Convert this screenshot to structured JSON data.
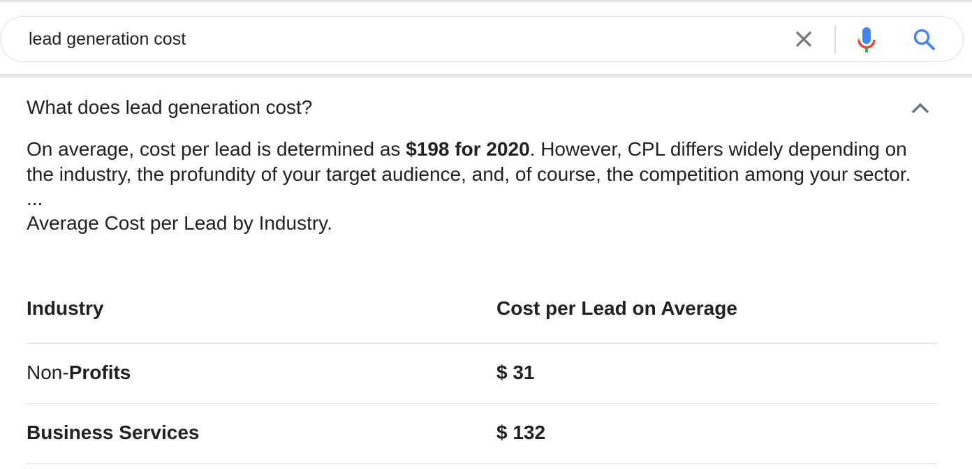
{
  "search": {
    "query": "lead generation cost"
  },
  "faq": {
    "question": "What does lead generation cost?",
    "answer_pre": "On average, cost per lead is determined as ",
    "answer_bold": "$198 for 2020",
    "answer_post": ". However, CPL differs widely depending on the industry, the profundity of your target audience, and, of course, the competition among your sector.",
    "ellipsis": "...",
    "table_caption": "Average Cost per Lead by Industry."
  },
  "table": {
    "headers": [
      "Industry",
      "Cost per Lead on Average"
    ],
    "rows": [
      {
        "industry_plain": "Non-",
        "industry_bold": "Profits",
        "cost": "$ 31"
      },
      {
        "industry_plain": "",
        "industry_bold": "Business Services",
        "cost": "$ 132"
      }
    ]
  },
  "colors": {
    "mic_blue": "#4285f4",
    "mic_red": "#ea4335",
    "mic_yellow": "#fbbc05",
    "mic_green": "#34a853",
    "search_icon": "#4285f4"
  }
}
